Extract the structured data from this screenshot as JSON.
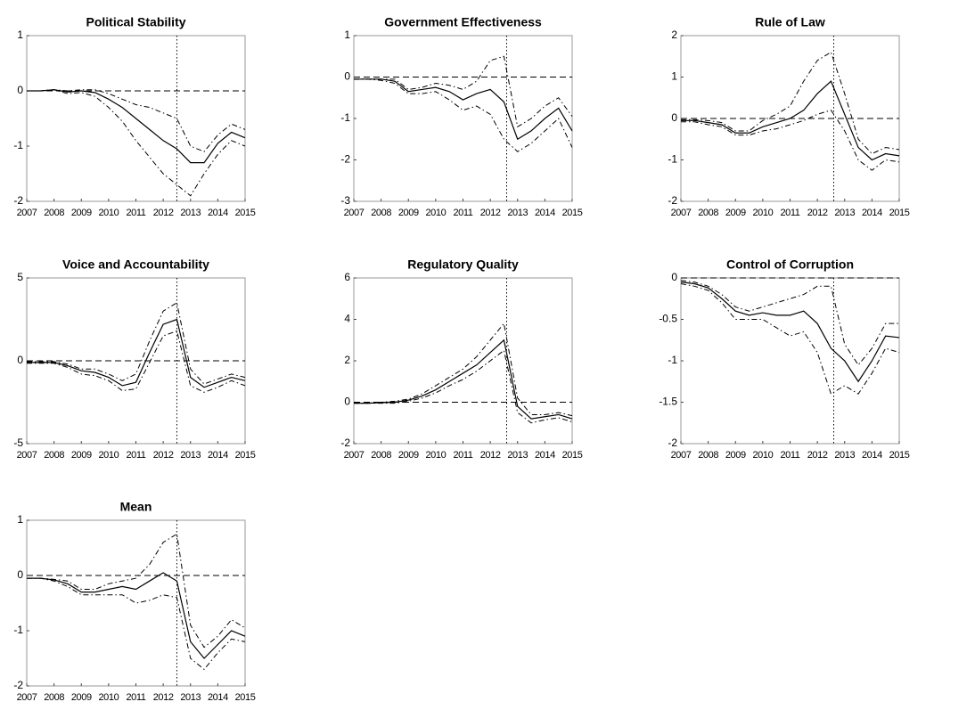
{
  "chart_data": [
    {
      "type": "line",
      "title": "Political Stability",
      "x": [
        2007,
        2007.5,
        2008,
        2008.5,
        2009,
        2009.5,
        2010,
        2010.5,
        2011,
        2011.5,
        2012,
        2012.5,
        2013,
        2013.5,
        2014,
        2014.5,
        2015
      ],
      "xlim": [
        2007,
        2015
      ],
      "xticks": [
        2007,
        2008,
        2009,
        2010,
        2011,
        2012,
        2013,
        2014,
        2015
      ],
      "ylim": [
        -2,
        1
      ],
      "yticks": [
        -2,
        -1,
        0,
        1
      ],
      "hline": 0,
      "vline": 2012.5,
      "series": [
        {
          "color": "#000000",
          "dash": "solid",
          "values": [
            0,
            0,
            0.02,
            -0.02,
            0,
            -0.03,
            -0.15,
            -0.3,
            -0.5,
            -0.7,
            -0.9,
            -1.05,
            -1.3,
            -1.3,
            -0.95,
            -0.75,
            -0.85
          ]
        },
        {
          "color": "#000000",
          "dash": "dashdot",
          "values": [
            0,
            0,
            0.02,
            0,
            0.02,
            0.02,
            -0.05,
            -0.15,
            -0.25,
            -0.3,
            -0.4,
            -0.5,
            -1.0,
            -1.1,
            -0.8,
            -0.6,
            -0.7
          ]
        },
        {
          "color": "#000000",
          "dash": "dashdot",
          "values": [
            0,
            0,
            0.02,
            -0.05,
            -0.03,
            -0.1,
            -0.3,
            -0.55,
            -0.9,
            -1.2,
            -1.5,
            -1.7,
            -1.9,
            -1.5,
            -1.15,
            -0.9,
            -1.0
          ]
        }
      ]
    },
    {
      "type": "line",
      "title": "Government Effectiveness",
      "x": [
        2007,
        2007.5,
        2008,
        2008.5,
        2009,
        2009.5,
        2010,
        2010.5,
        2011,
        2011.5,
        2012,
        2012.5,
        2013,
        2013.5,
        2014,
        2014.5,
        2015
      ],
      "xlim": [
        2007,
        2015
      ],
      "xticks": [
        2007,
        2008,
        2009,
        2010,
        2011,
        2012,
        2013,
        2014,
        2015
      ],
      "ylim": [
        -3,
        1
      ],
      "yticks": [
        -3,
        -2,
        -1,
        0,
        1
      ],
      "hline": 0,
      "vline": 2012.6,
      "series": [
        {
          "color": "#000000",
          "dash": "solid",
          "values": [
            -0.05,
            -0.05,
            -0.05,
            -0.1,
            -0.35,
            -0.3,
            -0.25,
            -0.35,
            -0.55,
            -0.4,
            -0.3,
            -0.6,
            -1.5,
            -1.3,
            -1.0,
            -0.75,
            -1.3
          ]
        },
        {
          "color": "#000000",
          "dash": "dashdot",
          "values": [
            -0.05,
            -0.05,
            -0.05,
            -0.05,
            -0.3,
            -0.25,
            -0.15,
            -0.2,
            -0.3,
            -0.1,
            0.4,
            0.5,
            -1.2,
            -1.0,
            -0.7,
            -0.5,
            -0.95
          ]
        },
        {
          "color": "#000000",
          "dash": "dashdot",
          "values": [
            -0.05,
            -0.05,
            -0.08,
            -0.15,
            -0.4,
            -0.4,
            -0.35,
            -0.55,
            -0.8,
            -0.7,
            -0.9,
            -1.5,
            -1.8,
            -1.6,
            -1.3,
            -1.0,
            -1.7
          ]
        }
      ]
    },
    {
      "type": "line",
      "title": "Rule of Law",
      "x": [
        2007,
        2007.5,
        2008,
        2008.5,
        2009,
        2009.5,
        2010,
        2010.5,
        2011,
        2011.5,
        2012,
        2012.5,
        2013,
        2013.5,
        2014,
        2014.5,
        2015
      ],
      "xlim": [
        2007,
        2015
      ],
      "xticks": [
        2007,
        2008,
        2009,
        2010,
        2011,
        2012,
        2013,
        2014,
        2015
      ],
      "ylim": [
        -2,
        2
      ],
      "yticks": [
        -2,
        -1,
        0,
        1,
        2
      ],
      "hline": 0,
      "vline": 2012.6,
      "series": [
        {
          "color": "#000000",
          "dash": "solid",
          "values": [
            -0.05,
            -0.05,
            -0.1,
            -0.15,
            -0.35,
            -0.35,
            -0.2,
            -0.1,
            0,
            0.2,
            0.6,
            0.9,
            0.1,
            -0.7,
            -1.0,
            -0.85,
            -0.9
          ]
        },
        {
          "color": "#000000",
          "dash": "dashdot",
          "values": [
            -0.03,
            -0.03,
            -0.05,
            -0.1,
            -0.3,
            -0.3,
            -0.05,
            0.1,
            0.3,
            0.9,
            1.4,
            1.6,
            0.6,
            -0.5,
            -0.85,
            -0.7,
            -0.75
          ]
        },
        {
          "color": "#000000",
          "dash": "dashdot",
          "values": [
            -0.08,
            -0.08,
            -0.15,
            -0.2,
            -0.4,
            -0.4,
            -0.3,
            -0.25,
            -0.15,
            -0.05,
            0.1,
            0.2,
            -0.3,
            -1.0,
            -1.25,
            -1.0,
            -1.05
          ]
        }
      ]
    },
    {
      "type": "line",
      "title": "Voice and Accountability",
      "x": [
        2007,
        2007.5,
        2008,
        2008.5,
        2009,
        2009.5,
        2010,
        2010.5,
        2011,
        2011.5,
        2012,
        2012.5,
        2013,
        2013.5,
        2014,
        2014.5,
        2015
      ],
      "xlim": [
        2007,
        2015
      ],
      "xticks": [
        2007,
        2008,
        2009,
        2010,
        2011,
        2012,
        2013,
        2014,
        2015
      ],
      "ylim": [
        -5,
        5
      ],
      "yticks": [
        -5,
        0,
        5
      ],
      "hline": 0,
      "vline": 2012.5,
      "series": [
        {
          "color": "#000000",
          "dash": "solid",
          "values": [
            -0.1,
            -0.1,
            -0.1,
            -0.3,
            -0.6,
            -0.7,
            -1.0,
            -1.5,
            -1.3,
            0.5,
            2.2,
            2.5,
            -1.0,
            -1.6,
            -1.3,
            -1.0,
            -1.2
          ]
        },
        {
          "color": "#000000",
          "dash": "dashdot",
          "values": [
            -0.05,
            -0.05,
            -0.05,
            -0.2,
            -0.5,
            -0.5,
            -0.8,
            -1.2,
            -0.8,
            1.2,
            3.0,
            3.5,
            -0.5,
            -1.4,
            -1.1,
            -0.8,
            -1.0
          ]
        },
        {
          "color": "#000000",
          "dash": "dashdot",
          "values": [
            -0.15,
            -0.15,
            -0.15,
            -0.4,
            -0.8,
            -0.9,
            -1.2,
            -1.8,
            -1.7,
            -0.1,
            1.5,
            1.8,
            -1.5,
            -1.9,
            -1.6,
            -1.2,
            -1.5
          ]
        }
      ]
    },
    {
      "type": "line",
      "title": "Regulatory Quality",
      "x": [
        2007,
        2007.5,
        2008,
        2008.5,
        2009,
        2009.5,
        2010,
        2010.5,
        2011,
        2011.5,
        2012,
        2012.5,
        2013,
        2013.5,
        2014,
        2014.5,
        2015
      ],
      "xlim": [
        2007,
        2015
      ],
      "xticks": [
        2007,
        2008,
        2009,
        2010,
        2011,
        2012,
        2013,
        2014,
        2015
      ],
      "ylim": [
        -2,
        6
      ],
      "yticks": [
        -2,
        0,
        2,
        4,
        6
      ],
      "hline": 0,
      "vline": 2012.6,
      "series": [
        {
          "color": "#000000",
          "dash": "solid",
          "values": [
            -0.05,
            -0.05,
            -0.02,
            0,
            0.1,
            0.3,
            0.6,
            1.0,
            1.4,
            1.8,
            2.4,
            3.0,
            -0.2,
            -0.8,
            -0.7,
            -0.6,
            -0.8
          ]
        },
        {
          "color": "#000000",
          "dash": "dashdot",
          "values": [
            -0.05,
            -0.05,
            0,
            0.05,
            0.15,
            0.4,
            0.8,
            1.2,
            1.6,
            2.2,
            3.0,
            3.8,
            0.2,
            -0.6,
            -0.6,
            -0.5,
            -0.65
          ]
        },
        {
          "color": "#000000",
          "dash": "dashdot",
          "values": [
            -0.05,
            -0.05,
            -0.05,
            -0.05,
            0.05,
            0.2,
            0.45,
            0.8,
            1.1,
            1.5,
            2.0,
            2.5,
            -0.5,
            -1.0,
            -0.85,
            -0.75,
            -0.95
          ]
        }
      ]
    },
    {
      "type": "line",
      "title": "Control of Corruption",
      "x": [
        2007,
        2007.5,
        2008,
        2008.5,
        2009,
        2009.5,
        2010,
        2010.5,
        2011,
        2011.5,
        2012,
        2012.5,
        2013,
        2013.5,
        2014,
        2014.5,
        2015
      ],
      "xlim": [
        2007,
        2015
      ],
      "xticks": [
        2007,
        2008,
        2009,
        2010,
        2011,
        2012,
        2013,
        2014,
        2015
      ],
      "ylim": [
        -2,
        0
      ],
      "yticks": [
        -2,
        -1.5,
        -1,
        -0.5,
        0
      ],
      "hline": 0,
      "vline": 2012.6,
      "series": [
        {
          "color": "#000000",
          "dash": "solid",
          "values": [
            -0.05,
            -0.07,
            -0.12,
            -0.25,
            -0.4,
            -0.45,
            -0.42,
            -0.45,
            -0.45,
            -0.4,
            -0.55,
            -0.85,
            -1.0,
            -1.25,
            -1.0,
            -0.7,
            -0.72
          ]
        },
        {
          "color": "#000000",
          "dash": "dashdot",
          "values": [
            -0.03,
            -0.05,
            -0.1,
            -0.2,
            -0.35,
            -0.4,
            -0.35,
            -0.3,
            -0.25,
            -0.2,
            -0.1,
            -0.1,
            -0.8,
            -1.05,
            -0.85,
            -0.55,
            -0.55
          ]
        },
        {
          "color": "#000000",
          "dash": "dashdot",
          "values": [
            -0.07,
            -0.1,
            -0.15,
            -0.3,
            -0.5,
            -0.5,
            -0.5,
            -0.6,
            -0.7,
            -0.65,
            -0.9,
            -1.4,
            -1.3,
            -1.4,
            -1.15,
            -0.85,
            -0.9
          ]
        }
      ]
    },
    {
      "type": "line",
      "title": "Mean",
      "x": [
        2007,
        2007.5,
        2008,
        2008.5,
        2009,
        2009.5,
        2010,
        2010.5,
        2011,
        2011.5,
        2012,
        2012.5,
        2013,
        2013.5,
        2014,
        2014.5,
        2015
      ],
      "xlim": [
        2007,
        2015
      ],
      "xticks": [
        2007,
        2008,
        2009,
        2010,
        2011,
        2012,
        2013,
        2014,
        2015
      ],
      "ylim": [
        -2,
        1
      ],
      "yticks": [
        -2,
        -1,
        0,
        1
      ],
      "hline": 0,
      "vline": 2012.5,
      "series": [
        {
          "color": "#000000",
          "dash": "solid",
          "values": [
            -0.05,
            -0.05,
            -0.08,
            -0.15,
            -0.3,
            -0.3,
            -0.25,
            -0.2,
            -0.25,
            -0.1,
            0.05,
            -0.1,
            -1.2,
            -1.5,
            -1.25,
            -1.0,
            -1.1
          ]
        },
        {
          "color": "#000000",
          "dash": "dashdot",
          "values": [
            -0.05,
            -0.05,
            -0.07,
            -0.1,
            -0.25,
            -0.25,
            -0.15,
            -0.1,
            -0.05,
            0.2,
            0.6,
            0.75,
            -0.9,
            -1.3,
            -1.1,
            -0.8,
            -0.95
          ]
        },
        {
          "color": "#000000",
          "dash": "dashdot",
          "values": [
            -0.05,
            -0.05,
            -0.1,
            -0.2,
            -0.35,
            -0.35,
            -0.35,
            -0.35,
            -0.5,
            -0.45,
            -0.35,
            -0.4,
            -1.5,
            -1.7,
            -1.4,
            -1.15,
            -1.2
          ]
        }
      ]
    }
  ]
}
